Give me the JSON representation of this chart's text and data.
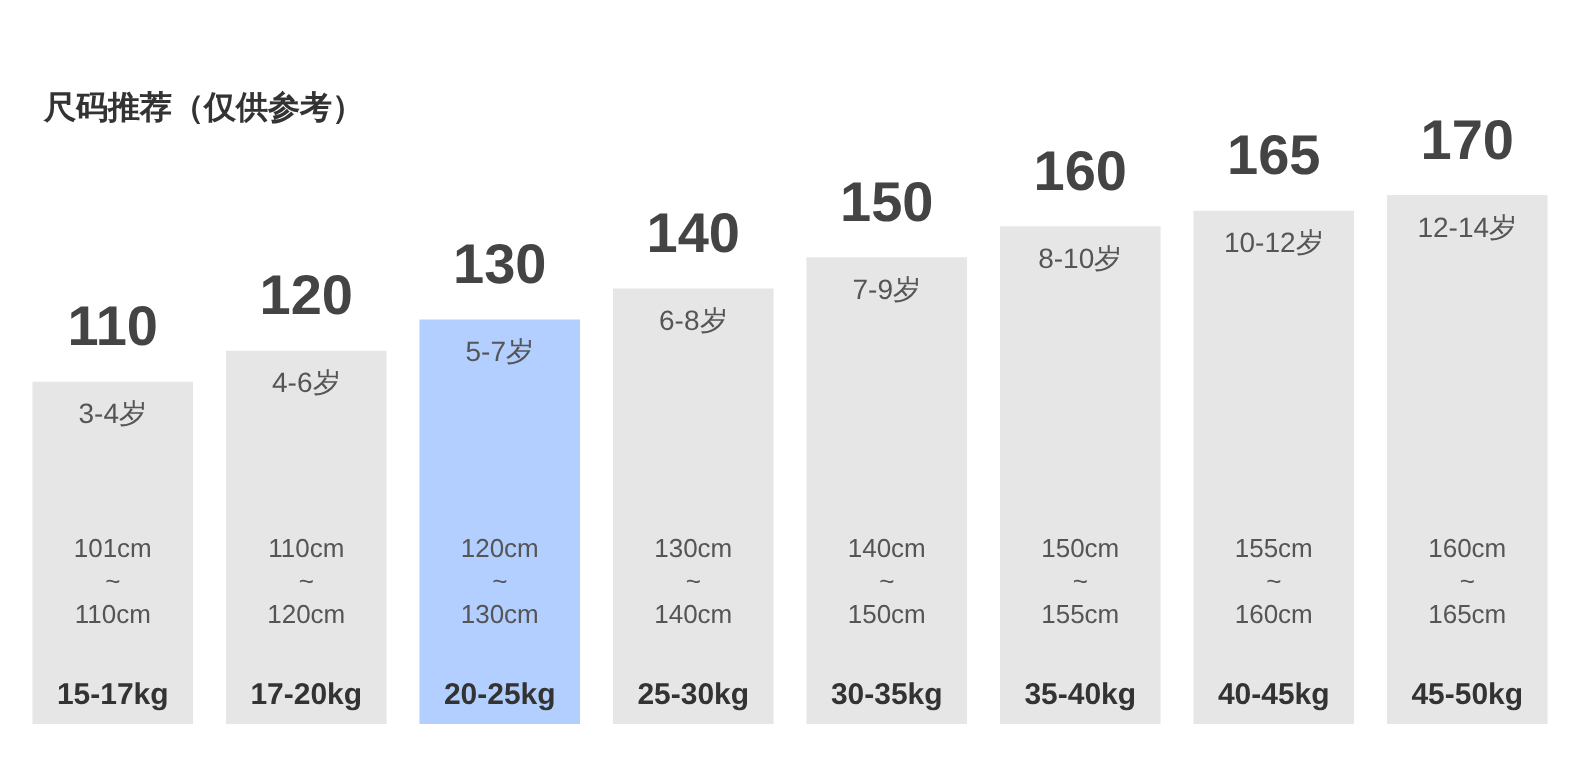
{
  "chart_data": {
    "type": "bar",
    "title": "尺码推荐（仅供参考）",
    "categories": [
      "15-17kg",
      "17-20kg",
      "20-25kg",
      "25-30kg",
      "30-35kg",
      "35-40kg",
      "40-45kg",
      "45-50kg"
    ],
    "values": [
      110,
      120,
      130,
      140,
      150,
      160,
      165,
      170
    ],
    "colors": [
      "#e6e6e6",
      "#e6e6e6",
      "#b3cfff",
      "#e6e6e6",
      "#e6e6e6",
      "#e6e6e6",
      "#e6e6e6",
      "#e6e6e6"
    ],
    "tick_labels": "x",
    "data_labels": true,
    "annotations": [
      "3-4岁",
      "101cm\n~\n110cm",
      "4-6岁",
      "110cm\n~\n120cm",
      "5-7岁",
      "120cm\n~\n130cm",
      "6-8岁",
      "130cm\n~\n140cm",
      "7-9岁",
      "140cm\n~\n150cm",
      "8-10岁",
      "150cm\n~\n155cm",
      "10-12岁",
      "155cm\n~\n160cm",
      "12-14岁",
      "160cm\n~\n165cm"
    ]
  }
}
